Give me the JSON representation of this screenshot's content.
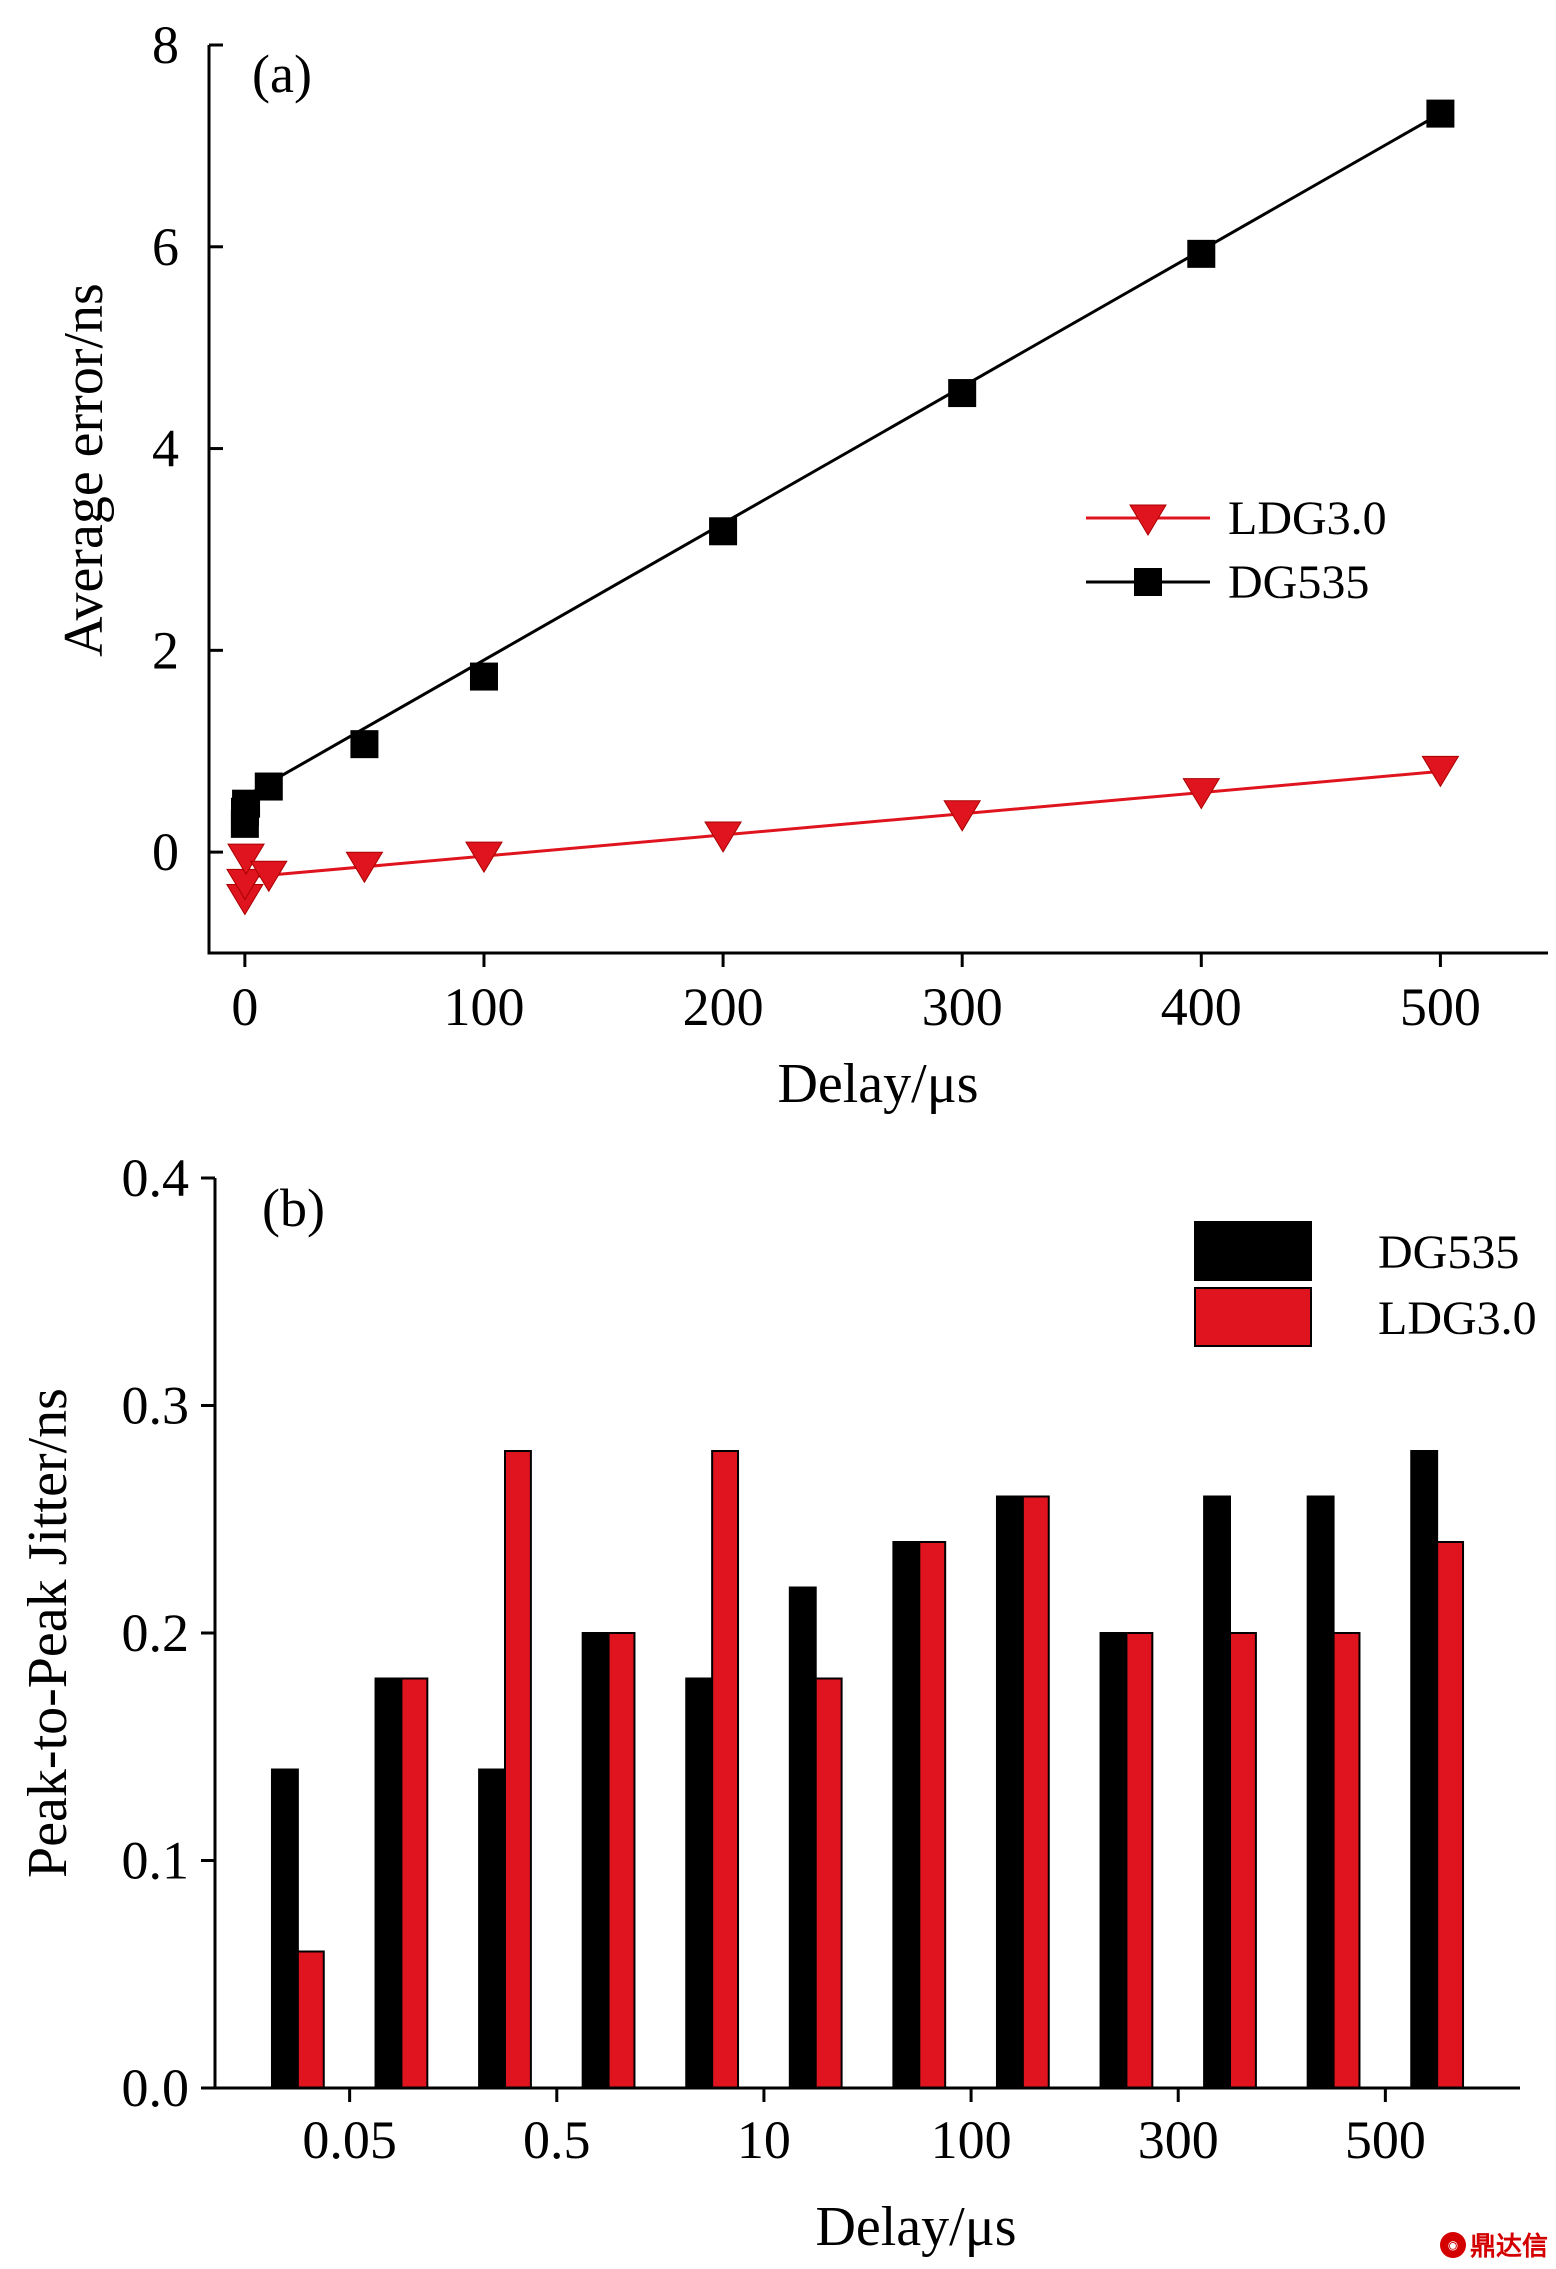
{
  "colors": {
    "dg535": "#000000",
    "ldg30": "#e0141e"
  },
  "chart_data": [
    {
      "type": "line",
      "panel_label": "(a)",
      "xlabel": "Delay/μs",
      "ylabel": "Average error/ns",
      "xlim": [
        -15,
        545
      ],
      "ylim": [
        -1,
        8
      ],
      "xticks": [
        0,
        100,
        200,
        300,
        400,
        500
      ],
      "yticks": [
        0,
        2,
        4,
        6,
        8
      ],
      "legend_position": "center-right",
      "series": [
        {
          "name": "LDG3.0",
          "marker": "triangle-down",
          "color": "#e0141e",
          "x": [
            0,
            0.05,
            0.5,
            10,
            50,
            100,
            200,
            300,
            400,
            500
          ],
          "y": [
            -0.45,
            -0.3,
            -0.05,
            -0.22,
            -0.13,
            -0.03,
            0.17,
            0.38,
            0.6,
            0.82
          ],
          "fit": [
            [
              0,
              -0.25
            ],
            [
              500,
              0.8
            ]
          ]
        },
        {
          "name": "DG535",
          "marker": "square",
          "color": "#000000",
          "x": [
            0,
            0.05,
            0.5,
            10,
            50,
            100,
            200,
            300,
            400,
            500
          ],
          "y": [
            0.28,
            0.4,
            0.48,
            0.65,
            1.07,
            1.74,
            3.18,
            4.55,
            5.93,
            7.32
          ],
          "fit": [
            [
              0,
              0.55
            ],
            [
              500,
              7.32
            ]
          ]
        }
      ]
    },
    {
      "type": "bar",
      "panel_label": "(b)",
      "xlabel": "Delay/μs",
      "ylabel": "Peak-to-Peak Jitter/ns",
      "ylim": [
        0,
        0.4
      ],
      "yticks": [
        "0.0",
        "0.1",
        "0.2",
        "0.3",
        "0.4"
      ],
      "xtick_labels": [
        "0.05",
        "0.5",
        "10",
        "100",
        "300",
        "500"
      ],
      "legend_position": "top-right",
      "series": [
        {
          "name": "DG535",
          "color": "#000000",
          "values": [
            0.14,
            0.18,
            0.14,
            0.2,
            0.18,
            0.22,
            0.24,
            0.26,
            0.2,
            0.26,
            0.26,
            0.28
          ]
        },
        {
          "name": "LDG3.0",
          "color": "#e0141e",
          "values": [
            0.06,
            0.18,
            0.28,
            0.2,
            0.28,
            0.18,
            0.24,
            0.26,
            0.2,
            0.2,
            0.2,
            0.24
          ]
        }
      ]
    }
  ],
  "watermark": "鼎达信"
}
